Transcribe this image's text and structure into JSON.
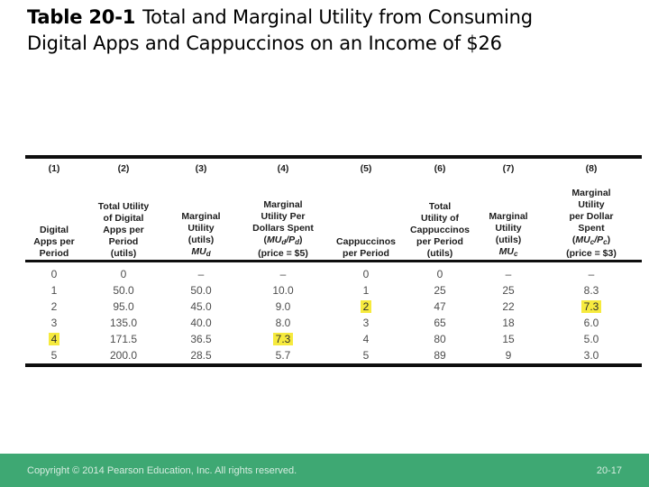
{
  "title": {
    "bold": "Table 20-1",
    "rest": "Total and Marginal Utility from Consuming Digital Apps and Cappuccinos on an Income of $26"
  },
  "footer": {
    "copyright": "Copyright © 2014 Pearson Education, Inc. All rights reserved.",
    "page": "20-17"
  },
  "colors": {
    "footer_green": "#3EA873",
    "highlight_yellow": "#F6EA3E"
  },
  "table": {
    "columns": [
      {
        "num": "(1)",
        "lines": [
          "Digital",
          "Apps per",
          "Period"
        ]
      },
      {
        "num": "(2)",
        "lines": [
          "Total Utility",
          "of Digital",
          "Apps per",
          "Period",
          "(utils)"
        ]
      },
      {
        "num": "(3)",
        "lines": [
          "Marginal",
          "Utility",
          "(utils)",
          "*MU_d_*"
        ]
      },
      {
        "num": "(4)",
        "lines": [
          "Marginal",
          "Utility Per",
          "Dollars Spent",
          "(*MU_d_/P_d_*)",
          "(price = $5)"
        ]
      },
      {
        "num": "(5)",
        "lines": [
          "Cappuccinos",
          "per Period"
        ]
      },
      {
        "num": "(6)",
        "lines": [
          "Total",
          "Utility of",
          "Cappuccinos",
          "per Period",
          "(utils)"
        ]
      },
      {
        "num": "(7)",
        "lines": [
          "Marginal",
          "Utility",
          "(utils)",
          "*MU_c_*"
        ]
      },
      {
        "num": "(8)",
        "lines": [
          "Marginal",
          "Utility",
          "per Dollar",
          "Spent",
          "(*MU_c_/P_c_*)",
          "(price = $3)"
        ]
      }
    ],
    "rows": [
      [
        "0",
        "0",
        "–",
        "–",
        "0",
        "0",
        "–",
        "–"
      ],
      [
        "1",
        "50.0",
        "50.0",
        "10.0",
        "1",
        "25",
        "25",
        "8.3"
      ],
      [
        "2",
        "95.0",
        "45.0",
        "9.0",
        "2",
        "47",
        "22",
        "7.3"
      ],
      [
        "3",
        "135.0",
        "40.0",
        "8.0",
        "3",
        "65",
        "18",
        "6.0"
      ],
      [
        "4",
        "171.5",
        "36.5",
        "7.3",
        "4",
        "80",
        "15",
        "5.0"
      ],
      [
        "5",
        "200.0",
        "28.5",
        "5.7",
        "5",
        "89",
        "9",
        "3.0"
      ]
    ],
    "highlights": [
      [
        4,
        0
      ],
      [
        4,
        3
      ],
      [
        2,
        4
      ],
      [
        2,
        7
      ]
    ]
  },
  "chart_data": {
    "type": "table",
    "title": "Table 20-1 Total and Marginal Utility from Consuming Digital Apps and Cappuccinos on an Income of $26",
    "columns": [
      "Digital Apps per Period",
      "Total Utility of Digital Apps per Period (utils)",
      "Marginal Utility (utils) MUd",
      "Marginal Utility Per Dollars Spent (MUd/Pd) (price = $5)",
      "Cappuccinos per Period",
      "Total Utility of Cappuccinos per Period (utils)",
      "Marginal Utility (utils) MUc",
      "Marginal Utility per Dollar Spent (MUc/Pc) (price = $3)"
    ],
    "rows": [
      [
        0,
        0,
        null,
        null,
        0,
        0,
        null,
        null
      ],
      [
        1,
        50.0,
        50.0,
        10.0,
        1,
        25,
        25,
        8.3
      ],
      [
        2,
        95.0,
        45.0,
        9.0,
        2,
        47,
        22,
        7.3
      ],
      [
        3,
        135.0,
        40.0,
        8.0,
        3,
        65,
        18,
        6.0
      ],
      [
        4,
        171.5,
        36.5,
        7.3,
        4,
        80,
        15,
        5.0
      ],
      [
        5,
        200.0,
        28.5,
        5.7,
        5,
        89,
        9,
        3.0
      ]
    ],
    "highlighted_cells": [
      [
        4,
        0
      ],
      [
        4,
        3
      ],
      [
        2,
        4
      ],
      [
        2,
        7
      ]
    ]
  }
}
